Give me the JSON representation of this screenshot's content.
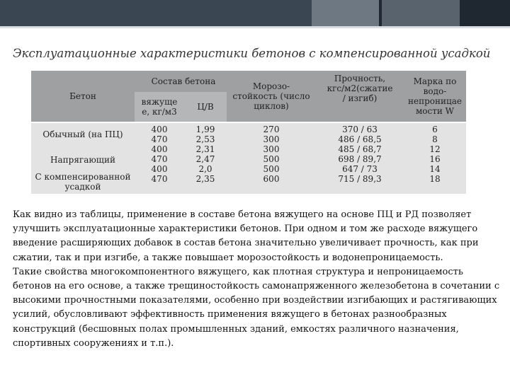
{
  "title": "Эксплуатационные характеристики бетонов с компенсированной усадкой",
  "table": {
    "headers": {
      "concrete": "Бетон",
      "composition": "Состав бетона",
      "binder": [
        "вяжуще",
        "е, кг/м3"
      ],
      "cw": "Ц/В",
      "frost": [
        "Морозо-",
        "стойкость (число",
        "циклов)"
      ],
      "strength": [
        "Прочность,",
        "кгс/м2(сжатие",
        "/ изгиб)"
      ],
      "water": [
        "Марка по",
        "водо-",
        "непроницае",
        "мости W"
      ]
    },
    "rows": [
      {
        "name": [
          "Обычный (на ПЦ)"
        ],
        "binder": [
          "400",
          "470"
        ],
        "cw": [
          "1,99",
          "2,53"
        ],
        "frost": [
          "270",
          "300"
        ],
        "strength": [
          "370 / 63",
          "486 / 68,5"
        ],
        "water": [
          "6",
          "8"
        ]
      },
      {
        "name": [
          "Напрягающий"
        ],
        "binder": [
          "400",
          "470"
        ],
        "cw": [
          "2,31",
          "2,47"
        ],
        "frost": [
          "300",
          "500"
        ],
        "strength": [
          "485 / 68,7",
          "698 / 89,7"
        ],
        "water": [
          "12",
          "16"
        ]
      },
      {
        "name": [
          "С компенсированной",
          "усадкой"
        ],
        "binder": [
          "400",
          "470"
        ],
        "cw": [
          "2,0",
          "2,35"
        ],
        "frost": [
          "500",
          "600"
        ],
        "strength": [
          "647 / 73",
          "715 / 89,3"
        ],
        "water": [
          "14",
          "18"
        ]
      }
    ]
  },
  "paragraphs": [
    "Как видно из таблицы, применение в составе бетона вяжущего на основе ПЦ и РД позволяет улучшить эксплуатационные характеристики бетонов. При одном и том же расходе вяжущего введение расширяющих добавок в состав бетона значительно увеличивает прочность, как при сжатии, так и при изгибе, а также повышает морозостойкость и водонепроницаемость.",
    "Такие свойства многокомпонентного вяжущего, как плотная структура и непроницаемость бетонов на его основе, а также трещиностойкость самонапряженного железобетона в сочетании с высокими прочностными показателями, особенно при воздействии изгибающих и растягивающих усилий, обусловливают эффективность применения вяжущего в бетонах разнообразных конструкций (бесшовных полах промышленных зданий, емкостях различного назначения, спортивных сооружениях и т.п.)."
  ]
}
